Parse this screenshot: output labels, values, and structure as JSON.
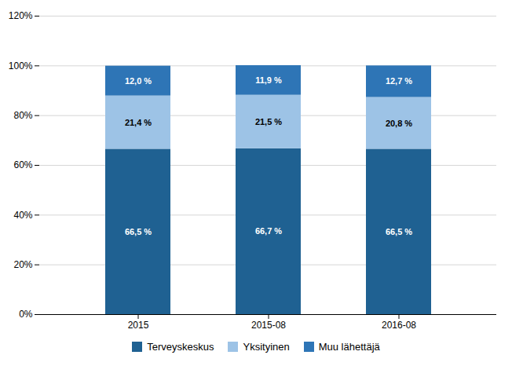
{
  "chart_data": {
    "type": "bar",
    "stacked": true,
    "categories": [
      "2015",
      "2015-08",
      "2016-08"
    ],
    "series": [
      {
        "name": "Terveyskeskus",
        "color": "#1F6192",
        "values": [
          66.5,
          66.7,
          66.5
        ],
        "value_labels": [
          "66,5 %",
          "66,7 %",
          "66,5 %"
        ]
      },
      {
        "name": "Yksityinen",
        "color": "#9DC3E6",
        "values": [
          21.4,
          21.5,
          20.8
        ],
        "value_labels": [
          "21,4 %",
          "21,5 %",
          "20,8 %"
        ]
      },
      {
        "name": "Muu lähettäjä",
        "color": "#2E75B6",
        "values": [
          12.0,
          11.9,
          12.7
        ],
        "value_labels": [
          "12,0 %",
          "11,9 %",
          "12,7 %"
        ]
      }
    ],
    "ylim": [
      0,
      120
    ],
    "yticks": [
      {
        "value": 0,
        "label": "0%"
      },
      {
        "value": 20,
        "label": "20%"
      },
      {
        "value": 40,
        "label": "40%"
      },
      {
        "value": 60,
        "label": "60%"
      },
      {
        "value": 80,
        "label": "80%"
      },
      {
        "value": 100,
        "label": "100%"
      },
      {
        "value": 120,
        "label": "120%"
      }
    ],
    "grid": true,
    "data_labels": true,
    "legend": "bottom"
  }
}
